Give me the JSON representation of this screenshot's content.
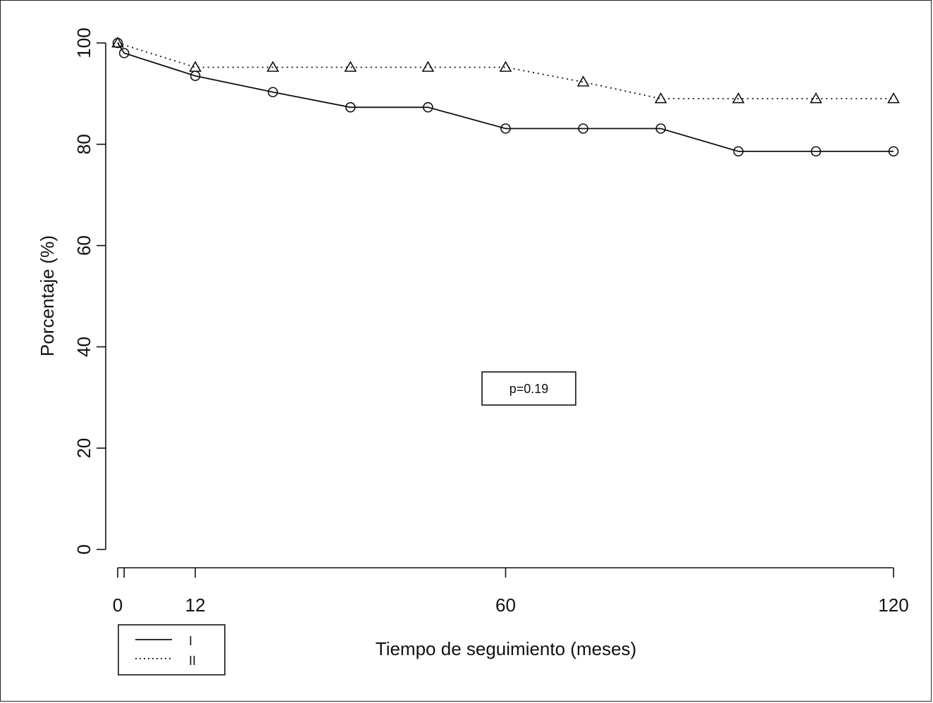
{
  "chart_data": {
    "type": "line",
    "title": "",
    "xlabel": "Tiempo de seguimiento (meses)",
    "ylabel": "Porcentaje (%)",
    "xlim": [
      0,
      120
    ],
    "ylim": [
      0,
      100
    ],
    "x_ticks": [
      0,
      12,
      60,
      120
    ],
    "y_ticks": [
      0,
      20,
      40,
      60,
      80,
      100
    ],
    "grid": false,
    "legend_position": "bottom-left",
    "annotation": "p=0.19",
    "series": [
      {
        "name": "I",
        "line_style": "solid",
        "marker": "circle",
        "x": [
          0,
          1,
          12,
          24,
          36,
          48,
          60,
          72,
          84,
          96,
          108,
          120
        ],
        "y": [
          100,
          98,
          93.5,
          90.3,
          87.3,
          87.3,
          83.1,
          83.1,
          83.1,
          78.6,
          78.6,
          78.6
        ]
      },
      {
        "name": "II",
        "line_style": "dotted",
        "marker": "triangle",
        "x": [
          0,
          12,
          24,
          36,
          48,
          60,
          72,
          84,
          96,
          108,
          120
        ],
        "y": [
          100,
          95.2,
          95.2,
          95.2,
          95.2,
          95.2,
          92.3,
          89,
          89,
          89,
          89
        ]
      }
    ]
  }
}
